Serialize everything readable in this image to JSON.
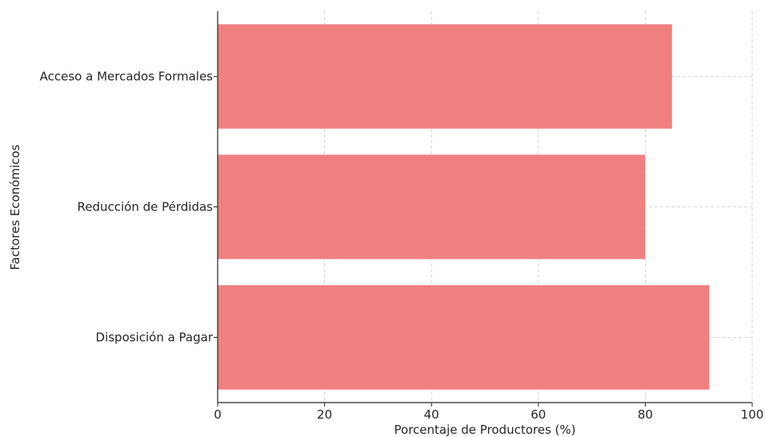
{
  "chart_data": {
    "type": "bar",
    "orientation": "horizontal",
    "title": "",
    "xlabel": "Porcentaje de Productores (%)",
    "ylabel": "Factores Económicos",
    "categories": [
      "Acceso a Mercados Formales",
      "Reducción de Pérdidas",
      "Disposición a Pagar"
    ],
    "values": [
      85,
      80,
      92
    ],
    "xlim": [
      0,
      100
    ],
    "xticks": [
      0,
      20,
      40,
      60,
      80,
      100
    ],
    "grid": true,
    "bar_color": "#f08080",
    "grid_color": "#cccccc"
  }
}
